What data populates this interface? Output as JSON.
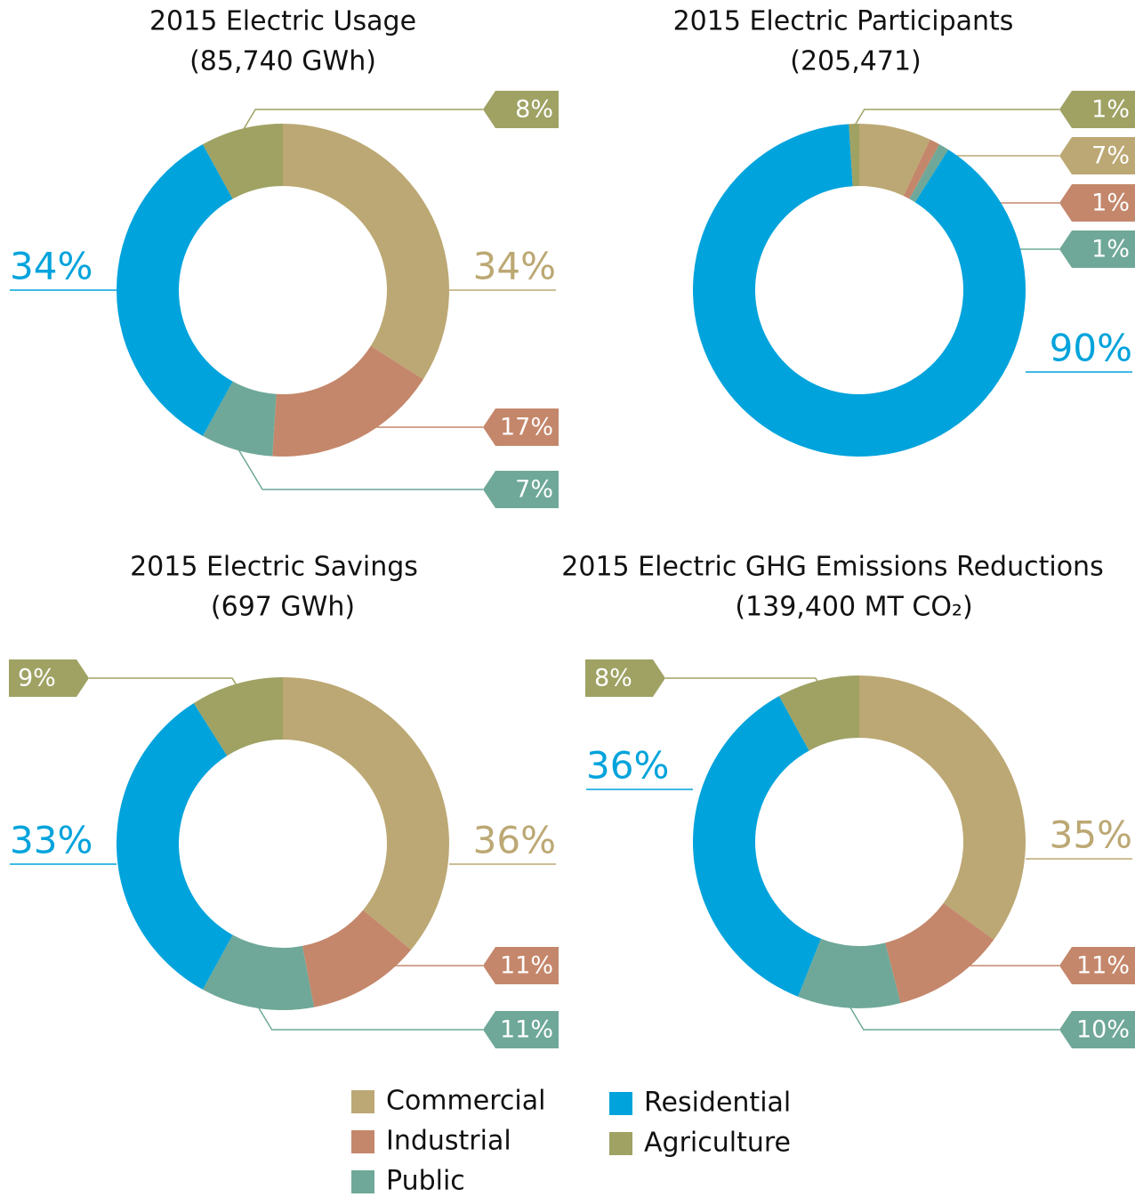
{
  "chart_data": [
    {
      "type": "donut",
      "title": "2015 Electric Usage",
      "subtitle": "(85,740 GWh)",
      "categories": [
        "Commercial",
        "Industrial",
        "Public",
        "Residential",
        "Agriculture"
      ],
      "values": [
        34,
        17,
        7,
        34,
        8
      ],
      "value_labels": [
        "34%",
        "17%",
        "7%",
        "34%",
        "8%"
      ],
      "colors": [
        "#bca874",
        "#c4876b",
        "#6fa898",
        "#00a3dc",
        "#9fa263"
      ]
    },
    {
      "type": "donut",
      "title": "2015 Electric Participants",
      "subtitle": "(205,471)",
      "categories": [
        "Commercial",
        "Industrial",
        "Public",
        "Residential",
        "Agriculture"
      ],
      "values": [
        7,
        1,
        1,
        90,
        1
      ],
      "value_labels": [
        "7%",
        "1%",
        "1%",
        "90%",
        "1%"
      ],
      "colors": [
        "#bca874",
        "#c4876b",
        "#6fa898",
        "#00a3dc",
        "#9fa263"
      ]
    },
    {
      "type": "donut",
      "title": "2015 Electric Savings",
      "subtitle": "(697 GWh)",
      "categories": [
        "Commercial",
        "Industrial",
        "Public",
        "Residential",
        "Agriculture"
      ],
      "values": [
        36,
        11,
        11,
        33,
        9
      ],
      "value_labels": [
        "36%",
        "11%",
        "11%",
        "33%",
        "9%"
      ],
      "colors": [
        "#bca874",
        "#c4876b",
        "#6fa898",
        "#00a3dc",
        "#9fa263"
      ]
    },
    {
      "type": "donut",
      "title": "2015 Electric GHG Emissions Reductions",
      "subtitle": "(139,400 MT CO₂)",
      "categories": [
        "Commercial",
        "Industrial",
        "Public",
        "Residential",
        "Agriculture"
      ],
      "values": [
        35,
        11,
        10,
        36,
        8
      ],
      "value_labels": [
        "35%",
        "11%",
        "10%",
        "36%",
        "8%"
      ],
      "colors": [
        "#bca874",
        "#c4876b",
        "#6fa898",
        "#00a3dc",
        "#9fa263"
      ]
    }
  ]
}
